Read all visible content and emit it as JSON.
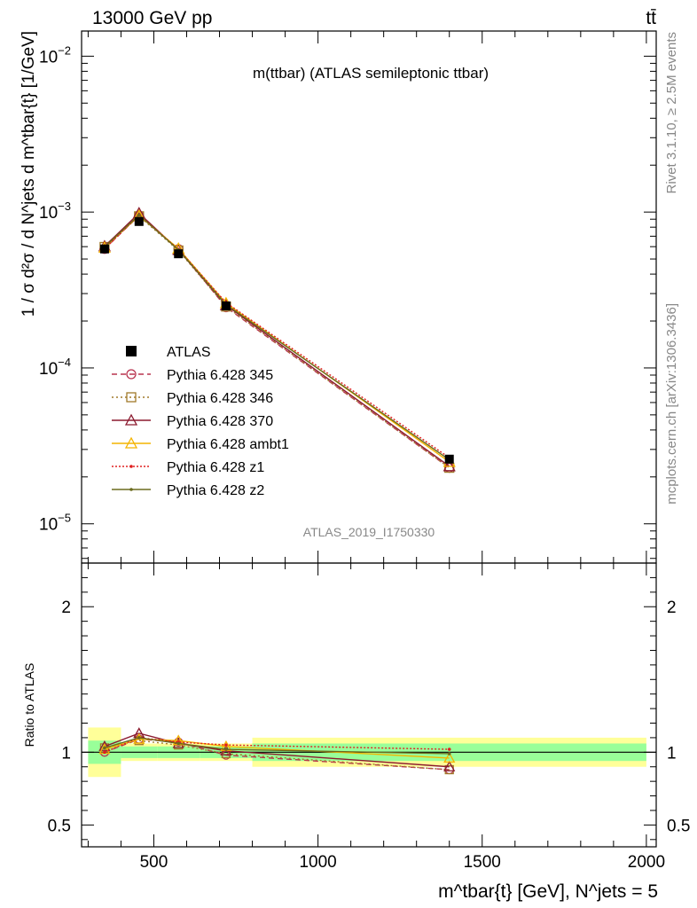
{
  "header": {
    "left": "13000 GeV pp",
    "right": "tt̄"
  },
  "side": {
    "rivet": "Rivet 3.1.10, ≥ 2.5M events",
    "mcplots": "mcplots.cern.ch [arXiv:1306.3436]"
  },
  "chart_data": {
    "type": "line",
    "title": "m(ttbar) (ATLAS semileptonic ttbar)",
    "watermark": "ATLAS_2019_I1750330",
    "ylabel": "1 / σ d²σ / d N^jets d m^tbar{t} [1/GeV]",
    "xlabel": "m^tbar{t} [GeV], N^jets = 5",
    "ratio_ylabel": "Ratio to ATLAS",
    "x_scale": "linear",
    "xlim": [
      280,
      2030
    ],
    "x_ticks": [
      500,
      1000,
      1500,
      2000
    ],
    "y_scale": "log",
    "ylim": [
      5.6e-06,
      0.0145
    ],
    "y_ticks": [
      "10^-5",
      "10^-4",
      "10^-3",
      "10^-2"
    ],
    "ratio_ylim": [
      0.35,
      2.3
    ],
    "ratio_ticks": [
      0.5,
      1,
      2
    ],
    "x": [
      350,
      455,
      575,
      720,
      1400
    ],
    "data": {
      "name": "ATLAS",
      "values": [
        0.00058,
        0.00087,
        0.00054,
        0.00025,
        2.6e-05
      ],
      "bins": [
        [
          300,
          400
        ],
        [
          400,
          510
        ],
        [
          510,
          640
        ],
        [
          640,
          800
        ],
        [
          800,
          2000
        ]
      ],
      "stat_band": [
        0.08,
        0.04,
        0.04,
        0.04,
        0.06
      ],
      "total_band": [
        0.17,
        0.06,
        0.06,
        0.06,
        0.1
      ]
    },
    "series": [
      {
        "name": "Pythia 6.428 345",
        "color": "#b8334f",
        "dash": "6,4",
        "marker": "circle",
        "ratio": [
          1.0,
          1.09,
          1.07,
          0.98,
          0.88
        ]
      },
      {
        "name": "Pythia 6.428 346",
        "color": "#a07a2a",
        "dash": "2,3",
        "marker": "square",
        "ratio": [
          1.03,
          1.08,
          1.05,
          0.99,
          0.88
        ]
      },
      {
        "name": "Pythia 6.428 370",
        "color": "#8b1a2f",
        "dash": "",
        "marker": "triangle",
        "ratio": [
          1.04,
          1.13,
          1.06,
          1.01,
          0.9
        ]
      },
      {
        "name": "Pythia 6.428 ambt1",
        "color": "#f4b400",
        "dash": "",
        "marker": "triangle",
        "ratio": [
          1.02,
          1.09,
          1.08,
          1.04,
          0.96
        ]
      },
      {
        "name": "Pythia 6.428 z1",
        "color": "#e02020",
        "dash": "2,2",
        "marker": "dot",
        "ratio": [
          1.0,
          1.1,
          1.07,
          1.05,
          1.02
        ]
      },
      {
        "name": "Pythia 6.428 z2",
        "color": "#6b6b1e",
        "dash": "",
        "marker": "dot",
        "ratio": [
          1.03,
          1.1,
          1.06,
          1.02,
          0.99
        ]
      }
    ]
  }
}
